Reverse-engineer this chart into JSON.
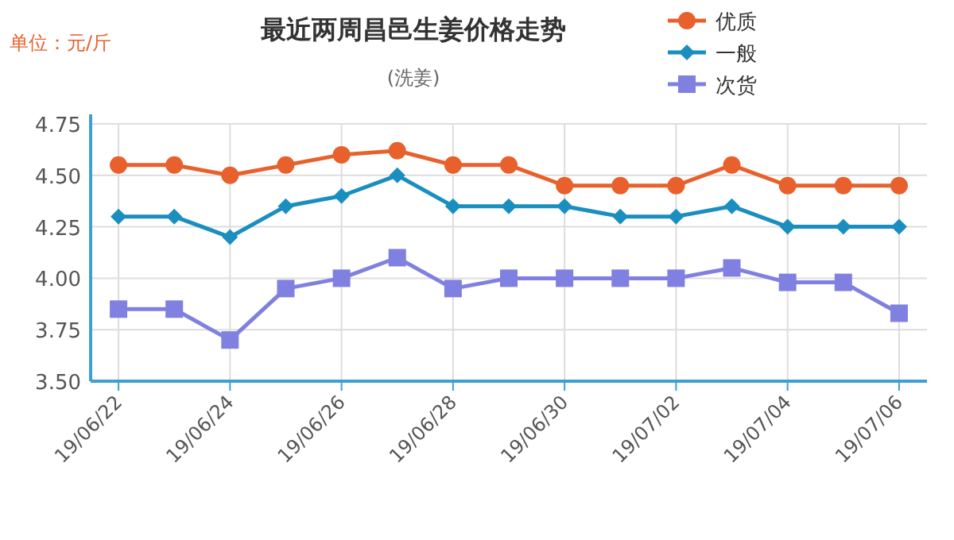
{
  "chart_data": {
    "type": "line",
    "title": "最近两周昌邑生姜价格走势",
    "subtitle": "(洗姜)",
    "ylabel": "单位：元/斤",
    "categories": [
      "19/06/22",
      null,
      "19/06/24",
      null,
      "19/06/26",
      null,
      "19/06/28",
      null,
      "19/06/30",
      null,
      "19/07/02",
      null,
      "19/07/04",
      null,
      "19/07/06"
    ],
    "series": [
      {
        "name": "优质",
        "color": "#e8602c",
        "marker": "circle",
        "values": [
          4.55,
          4.55,
          4.5,
          4.55,
          4.6,
          4.62,
          4.55,
          4.55,
          4.45,
          4.45,
          4.45,
          4.55,
          4.45,
          4.45,
          4.45
        ]
      },
      {
        "name": "一般",
        "color": "#1a8fbf",
        "marker": "diamond",
        "values": [
          4.3,
          4.3,
          4.2,
          4.35,
          4.4,
          4.5,
          4.35,
          4.35,
          4.35,
          4.3,
          4.3,
          4.35,
          4.25,
          4.25,
          4.25
        ]
      },
      {
        "name": "次货",
        "color": "#8080e0",
        "marker": "square",
        "values": [
          3.85,
          3.85,
          3.7,
          3.95,
          4.0,
          4.1,
          3.95,
          4.0,
          4.0,
          4.0,
          4.0,
          4.05,
          3.98,
          3.98,
          3.83
        ]
      }
    ],
    "ylim": [
      3.5,
      4.75
    ],
    "yticks": [
      {
        "value": 3.5,
        "label": "3.50"
      },
      {
        "value": 3.75,
        "label": "3.75"
      },
      {
        "value": 4.0,
        "label": "4.00"
      },
      {
        "value": 4.25,
        "label": "4.25"
      },
      {
        "value": 4.5,
        "label": "4.50"
      },
      {
        "value": 4.75,
        "label": "4.75"
      }
    ],
    "grid": true,
    "legend": "top right"
  }
}
